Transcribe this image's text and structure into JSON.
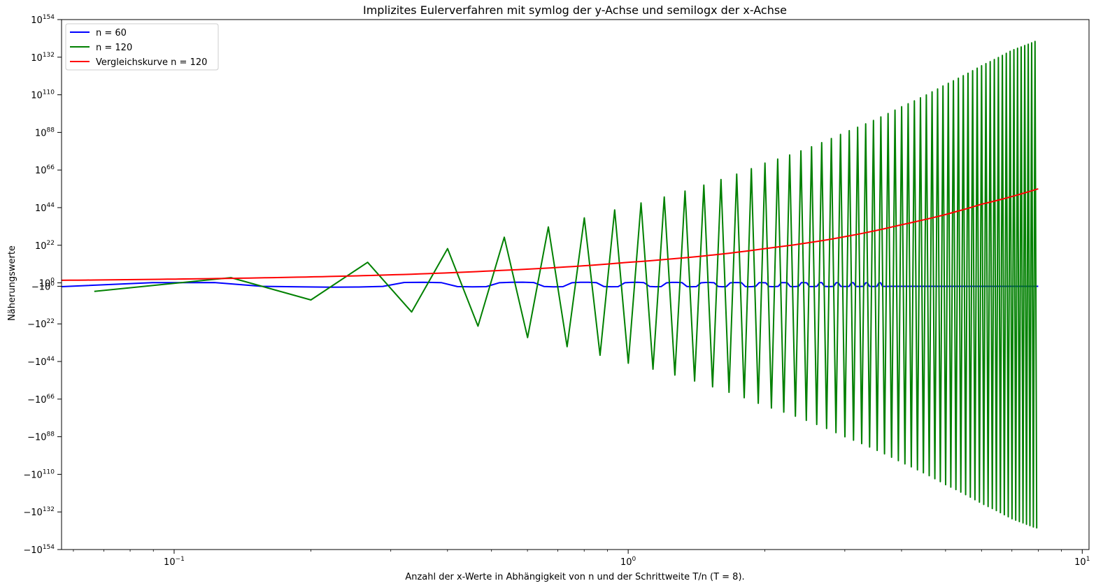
{
  "chart_data": {
    "type": "line",
    "title": "Implizites Eulerverfahren mit symlog der y-Achse und semilogx der x-Achse",
    "xlabel": "Anzahl der x-Werte in Abhängigkeit von n und der Schrittweite T/n (T = 8).",
    "ylabel": "Näherungswerte",
    "x_scale": "log",
    "y_scale": "symlog",
    "xlim": [
      0.0565,
      10.35
    ],
    "ylim": [
      -1e+154,
      1e+154
    ],
    "grid": false,
    "legend_position": "top-left",
    "x_ticks": [
      {
        "value": 0.1,
        "base": "10",
        "exp": "−1"
      },
      {
        "value": 1,
        "base": "10",
        "exp": "0"
      },
      {
        "value": 10,
        "base": "10",
        "exp": "1"
      }
    ],
    "y_ticks": [
      {
        "exp10": 154,
        "sign": 1,
        "base": "10",
        "exp": "154"
      },
      {
        "exp10": 132,
        "sign": 1,
        "base": "10",
        "exp": "132"
      },
      {
        "exp10": 110,
        "sign": 1,
        "base": "10",
        "exp": "110"
      },
      {
        "exp10": 88,
        "sign": 1,
        "base": "10",
        "exp": "88"
      },
      {
        "exp10": 66,
        "sign": 1,
        "base": "10",
        "exp": "66"
      },
      {
        "exp10": 44,
        "sign": 1,
        "base": "10",
        "exp": "44"
      },
      {
        "exp10": 22,
        "sign": 1,
        "base": "10",
        "exp": "22"
      },
      {
        "exp10": 0,
        "sign": 1,
        "base": "10",
        "exp": "0"
      },
      {
        "exp10": 0,
        "sign": -1,
        "base": "−10",
        "exp": "0"
      },
      {
        "exp10": 22,
        "sign": -1,
        "base": "−10",
        "exp": "22"
      },
      {
        "exp10": 44,
        "sign": -1,
        "base": "−10",
        "exp": "44"
      },
      {
        "exp10": 66,
        "sign": -1,
        "base": "−10",
        "exp": "66"
      },
      {
        "exp10": 88,
        "sign": -1,
        "base": "−10",
        "exp": "88"
      },
      {
        "exp10": 110,
        "sign": -1,
        "base": "−10",
        "exp": "110"
      },
      {
        "exp10": 132,
        "sign": -1,
        "base": "−10",
        "exp": "132"
      },
      {
        "exp10": 154,
        "sign": -1,
        "base": "−10",
        "exp": "154"
      }
    ],
    "series": [
      {
        "name": "n = 60",
        "color": "#0000ff",
        "description": "Blue curve stays near zero across the whole range, oscillating only slightly around 0.",
        "points_y_symlog_exponent": [
          [
            0.0667,
            -1.2
          ],
          [
            0.5,
            0.3
          ],
          [
            2,
            -0.2
          ],
          [
            8,
            -0.1
          ]
        ]
      },
      {
        "name": "n = 120",
        "color": "#008000",
        "x_step": 0.0667,
        "x_end": 8,
        "description": "Green curve alternates sign at every step with growing magnitude, reaching about ±10^140 at x = 8.",
        "envelope": [
          [
            0.0667,
            3
          ],
          [
            0.133,
            3
          ],
          [
            0.2,
            8
          ],
          [
            0.267,
            12
          ],
          [
            0.333,
            15
          ],
          [
            0.4,
            20
          ],
          [
            0.5,
            25
          ],
          [
            0.6,
            30
          ],
          [
            0.8,
            38
          ],
          [
            1.0,
            45
          ],
          [
            1.5,
            58
          ],
          [
            2.0,
            70
          ],
          [
            3.0,
            88
          ],
          [
            4.0,
            103
          ],
          [
            5.0,
            116
          ],
          [
            6.0,
            127
          ],
          [
            7.0,
            136
          ],
          [
            8.0,
            142
          ]
        ]
      },
      {
        "name": "Vergleichskurve n = 120",
        "color": "#ff0000",
        "description": "Red reference curve rising monotonically from about 10^1.5 to about 10^55 at x = 8.",
        "points_y_symlog_exponent": [
          [
            0.0565,
            1.5
          ],
          [
            0.1,
            2.2
          ],
          [
            0.2,
            3.5
          ],
          [
            0.5,
            7
          ],
          [
            1.0,
            12
          ],
          [
            2.0,
            20
          ],
          [
            4.0,
            34
          ],
          [
            6.0,
            46
          ],
          [
            8.0,
            55
          ]
        ]
      }
    ]
  }
}
